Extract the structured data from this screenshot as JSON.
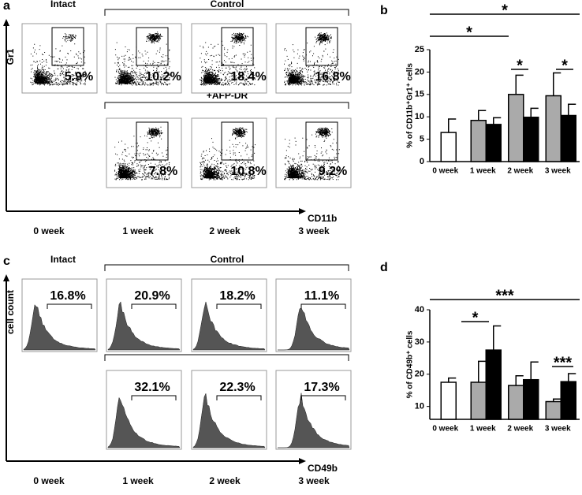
{
  "panel_a": {
    "label": "a",
    "intact": "Intact",
    "control": "Control",
    "treated": "+AFP-DR",
    "y_axis": "Gr1",
    "x_axis": "CD11b",
    "gates": [
      "5.9%",
      "10.2%",
      "18.4%",
      "16.8%",
      "7.8%",
      "10.8%",
      "9.2%"
    ],
    "weeks": [
      "0 week",
      "1 week",
      "2 week",
      "3 week"
    ]
  },
  "panel_c": {
    "label": "c",
    "intact": "Intact",
    "control": "Control",
    "treated": "+AFP-DR",
    "y_axis": "cell count",
    "x_axis": "CD49b",
    "gates": [
      "16.8%",
      "20.9%",
      "18.2%",
      "11.1%",
      "32.1%",
      "22.3%",
      "17.3%"
    ],
    "weeks": [
      "0 week",
      "1 week",
      "2 week",
      "3 week"
    ]
  },
  "chart_data": [
    {
      "type": "bar",
      "panel_label": "b",
      "y_label": "% of CD11b⁺Gr1⁺ cells",
      "categories": [
        "0 week",
        "1 week",
        "2 week",
        "3 week"
      ],
      "ylim": [
        0,
        25
      ],
      "yticks": [
        0,
        5,
        10,
        15,
        20,
        25
      ],
      "series": [
        {
          "color": "#ffffff",
          "values": [
            6.5,
            null,
            null,
            null
          ],
          "errors": [
            3,
            null,
            null,
            null
          ]
        },
        {
          "color": "#aaaaaa",
          "values": [
            null,
            9.2,
            15,
            14.7
          ],
          "errors": [
            null,
            2.2,
            4.3,
            5.1
          ]
        },
        {
          "color": "#000000",
          "values": [
            null,
            8.3,
            9.9,
            10.3
          ],
          "errors": [
            null,
            1.5,
            2,
            2.5
          ]
        }
      ],
      "significance": [
        "*",
        "*",
        "*",
        "*"
      ]
    },
    {
      "type": "bar",
      "panel_label": "d",
      "y_label": "% of CD49b⁺ cells",
      "categories": [
        "0 week",
        "1 week",
        "2 week",
        "3 week"
      ],
      "ylim": [
        6,
        40
      ],
      "yticks": [
        10,
        20,
        30,
        40
      ],
      "series": [
        {
          "color": "#ffffff",
          "values": [
            17.5,
            null,
            null,
            null
          ],
          "errors": [
            1.3,
            null,
            null,
            null
          ]
        },
        {
          "color": "#aaaaaa",
          "values": [
            null,
            17.5,
            16.5,
            11.5
          ],
          "errors": [
            null,
            6.5,
            3,
            0.8
          ]
        },
        {
          "color": "#000000",
          "values": [
            null,
            27.5,
            18.3,
            17.7
          ],
          "errors": [
            null,
            7.5,
            5.5,
            2.5
          ]
        }
      ],
      "significance": [
        "***",
        "*",
        "***"
      ]
    }
  ]
}
